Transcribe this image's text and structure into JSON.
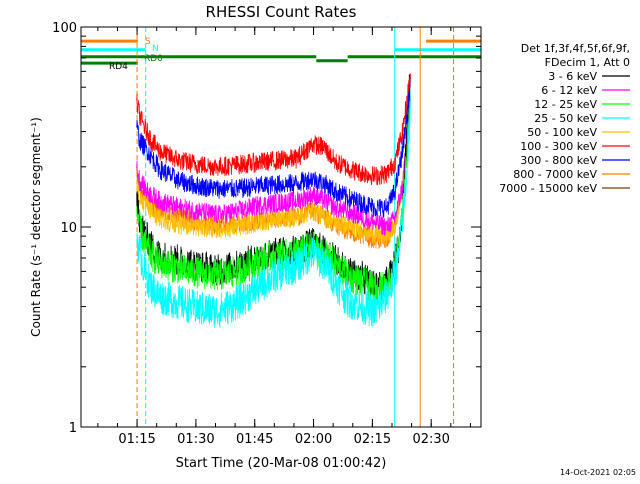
{
  "chart_data": {
    "type": "line",
    "title": "RHESSI Count Rates",
    "xlabel": "Start Time (20-Mar-08 01:00:42)",
    "ylabel": "Count Rate (s⁻¹ detector segment⁻¹)",
    "footer_timestamp": "14-Oct-2021 02:05",
    "x_unit": "minutes after 01:00:42",
    "xlim": [
      0,
      102
    ],
    "ylim": [
      1,
      100
    ],
    "y_scale": "log",
    "x_ticks": [
      {
        "x": 14.3,
        "label": "01:15"
      },
      {
        "x": 29.3,
        "label": "01:30"
      },
      {
        "x": 44.3,
        "label": "01:45"
      },
      {
        "x": 59.3,
        "label": "02:00"
      },
      {
        "x": 74.3,
        "label": "02:15"
      },
      {
        "x": 89.3,
        "label": "02:30"
      }
    ],
    "y_ticks": [
      {
        "y": 1,
        "label": "1"
      },
      {
        "y": 10,
        "label": "10"
      },
      {
        "y": 100,
        "label": "100"
      }
    ],
    "legend": {
      "placement": "right",
      "header1": "Det 1f,3f,4f,5f,6f,9f,",
      "header2": "FDecim 1, Att 0"
    },
    "series": [
      {
        "name": "3 - 6 keV",
        "color": "#000000",
        "points": [
          [
            14.2,
            13
          ],
          [
            15,
            11
          ],
          [
            16,
            9.5
          ],
          [
            18,
            8
          ],
          [
            20,
            7.2
          ],
          [
            25,
            6.8
          ],
          [
            30,
            6.4
          ],
          [
            35,
            6.1
          ],
          [
            40,
            6.4
          ],
          [
            45,
            7.0
          ],
          [
            50,
            7.4
          ],
          [
            55,
            7.6
          ],
          [
            59,
            8.3
          ],
          [
            62,
            7.6
          ],
          [
            65,
            6.8
          ],
          [
            68,
            6.0
          ],
          [
            72,
            5.6
          ],
          [
            75,
            5.0
          ],
          [
            77,
            5.1
          ],
          [
            79,
            5.8
          ],
          [
            81,
            8
          ],
          [
            82,
            12
          ],
          [
            83,
            28
          ],
          [
            84,
            62
          ]
        ]
      },
      {
        "name": "6 - 12 keV",
        "color": "#ff00ff",
        "points": [
          [
            14.2,
            20
          ],
          [
            15,
            17
          ],
          [
            17,
            15
          ],
          [
            20,
            13.5
          ],
          [
            25,
            12.5
          ],
          [
            30,
            12
          ],
          [
            35,
            11.5
          ],
          [
            40,
            12
          ],
          [
            45,
            12.8
          ],
          [
            50,
            13.2
          ],
          [
            55,
            13.5
          ],
          [
            59,
            14.5
          ],
          [
            62,
            13.5
          ],
          [
            65,
            12.5
          ],
          [
            70,
            11.5
          ],
          [
            75,
            10.5
          ],
          [
            78,
            10
          ],
          [
            80,
            11
          ],
          [
            82,
            16
          ],
          [
            84,
            45
          ]
        ]
      },
      {
        "name": "12 - 25 keV",
        "color": "#00ff00",
        "points": [
          [
            14.2,
            12
          ],
          [
            15,
            10
          ],
          [
            16,
            8.5
          ],
          [
            18,
            7.2
          ],
          [
            20,
            6.6
          ],
          [
            25,
            6.2
          ],
          [
            30,
            5.9
          ],
          [
            35,
            5.7
          ],
          [
            40,
            6.0
          ],
          [
            45,
            6.8
          ],
          [
            50,
            7.2
          ],
          [
            55,
            7.4
          ],
          [
            59,
            8.0
          ],
          [
            62,
            7.3
          ],
          [
            65,
            6.5
          ],
          [
            68,
            5.7
          ],
          [
            72,
            5.3
          ],
          [
            75,
            4.9
          ],
          [
            78,
            5.1
          ],
          [
            80,
            6.2
          ],
          [
            82,
            11
          ],
          [
            83,
            22
          ],
          [
            84,
            48
          ]
        ]
      },
      {
        "name": "25 - 50 keV",
        "color": "#00ffff",
        "points": [
          [
            14.2,
            9
          ],
          [
            15,
            7.5
          ],
          [
            16,
            6.2
          ],
          [
            18,
            5.0
          ],
          [
            20,
            4.5
          ],
          [
            25,
            4.2
          ],
          [
            30,
            3.9
          ],
          [
            35,
            3.8
          ],
          [
            40,
            4.2
          ],
          [
            45,
            5.0
          ],
          [
            50,
            5.8
          ],
          [
            55,
            6.4
          ],
          [
            59,
            7.4
          ],
          [
            62,
            6.6
          ],
          [
            65,
            5.3
          ],
          [
            68,
            4.3
          ],
          [
            72,
            4.0
          ],
          [
            75,
            3.8
          ],
          [
            77,
            4.2
          ],
          [
            79,
            5.0
          ],
          [
            81,
            7
          ],
          [
            83,
            18
          ],
          [
            84,
            40
          ]
        ]
      },
      {
        "name": "50 - 100 keV",
        "color": "#ffbf00",
        "points": [
          [
            14.2,
            16
          ],
          [
            15,
            14
          ],
          [
            17,
            12.5
          ],
          [
            20,
            11
          ],
          [
            25,
            10.3
          ],
          [
            30,
            10
          ],
          [
            35,
            9.8
          ],
          [
            40,
            10
          ],
          [
            45,
            10.5
          ],
          [
            50,
            11
          ],
          [
            55,
            11.2
          ],
          [
            59,
            12
          ],
          [
            62,
            11.3
          ],
          [
            65,
            10.5
          ],
          [
            70,
            9.8
          ],
          [
            75,
            9.2
          ],
          [
            78,
            9
          ],
          [
            80,
            10
          ],
          [
            82,
            15
          ],
          [
            84,
            42
          ]
        ]
      },
      {
        "name": "100 - 300 keV",
        "color": "#ff0000",
        "points": [
          [
            14.2,
            42
          ],
          [
            15,
            36
          ],
          [
            16,
            32
          ],
          [
            18,
            27
          ],
          [
            20,
            24
          ],
          [
            25,
            21.5
          ],
          [
            30,
            20.5
          ],
          [
            35,
            20
          ],
          [
            40,
            20.5
          ],
          [
            45,
            21
          ],
          [
            50,
            21.5
          ],
          [
            55,
            22
          ],
          [
            59,
            26
          ],
          [
            62,
            25
          ],
          [
            65,
            21
          ],
          [
            70,
            19
          ],
          [
            75,
            18
          ],
          [
            78,
            18.5
          ],
          [
            80,
            21
          ],
          [
            82,
            30
          ],
          [
            84,
            58
          ]
        ]
      },
      {
        "name": "300 - 800 keV",
        "color": "#0000ff",
        "points": [
          [
            14.2,
            32
          ],
          [
            15,
            27
          ],
          [
            17,
            24
          ],
          [
            20,
            19.5
          ],
          [
            25,
            17
          ],
          [
            30,
            16
          ],
          [
            35,
            15.5
          ],
          [
            40,
            15.5
          ],
          [
            45,
            16
          ],
          [
            50,
            16.3
          ],
          [
            55,
            16.5
          ],
          [
            59,
            17.5
          ],
          [
            62,
            16.5
          ],
          [
            65,
            15
          ],
          [
            70,
            13.5
          ],
          [
            75,
            12.5
          ],
          [
            78,
            12.5
          ],
          [
            80,
            15
          ],
          [
            82,
            24
          ],
          [
            84,
            52
          ]
        ]
      },
      {
        "name": "800 - 7000 keV",
        "color": "#ff7f00",
        "points": [
          [
            14.2,
            18
          ],
          [
            15,
            15.5
          ],
          [
            17,
            13.5
          ],
          [
            20,
            12
          ],
          [
            25,
            11.2
          ],
          [
            30,
            10.6
          ],
          [
            35,
            10.2
          ],
          [
            40,
            10.5
          ],
          [
            45,
            10.8
          ],
          [
            50,
            11
          ],
          [
            55,
            11.2
          ],
          [
            59,
            12
          ],
          [
            62,
            11.2
          ],
          [
            65,
            10.2
          ],
          [
            70,
            9.2
          ],
          [
            75,
            8.7
          ],
          [
            78,
            8.8
          ],
          [
            80,
            10
          ],
          [
            82,
            16
          ],
          [
            84,
            44
          ]
        ]
      },
      {
        "name": "7000 - 15000 keV",
        "color": "#7f3f00",
        "points": []
      }
    ],
    "state_bars": [
      {
        "name": "S",
        "label": "S",
        "color": "#ff7f00",
        "y": 85,
        "segments": [
          [
            0,
            14.5
          ],
          [
            88,
            102
          ]
        ]
      },
      {
        "name": "N",
        "label": "N",
        "color": "#00ffff",
        "y": 77,
        "segments": [
          [
            0,
            16.5
          ],
          [
            80,
            102
          ]
        ]
      },
      {
        "name": "RD0",
        "label": "RD0",
        "color": "#008000",
        "y": 71,
        "segments": [
          [
            0,
            60
          ],
          [
            60,
            68
          ],
          [
            68,
            102
          ]
        ]
      },
      {
        "name": "RD4",
        "label": "RD4",
        "color": "#008000",
        "y": 66,
        "segments": [
          [
            0,
            14.5
          ]
        ]
      }
    ],
    "vertical_markers": [
      {
        "x": 14.3,
        "color": "#ff7f00",
        "style": "dashed"
      },
      {
        "x": 16.5,
        "color": "#00ffff",
        "style": "dashed"
      },
      {
        "x": 80.0,
        "color": "#00ffff",
        "style": "solid"
      },
      {
        "x": 86.5,
        "color": "#ff7f00",
        "style": "solid"
      },
      {
        "x": 95.0,
        "color": "#00ffff",
        "style": "dashed"
      },
      {
        "x": 95.0,
        "color": "#ff7f00",
        "style": "dashed"
      }
    ]
  }
}
